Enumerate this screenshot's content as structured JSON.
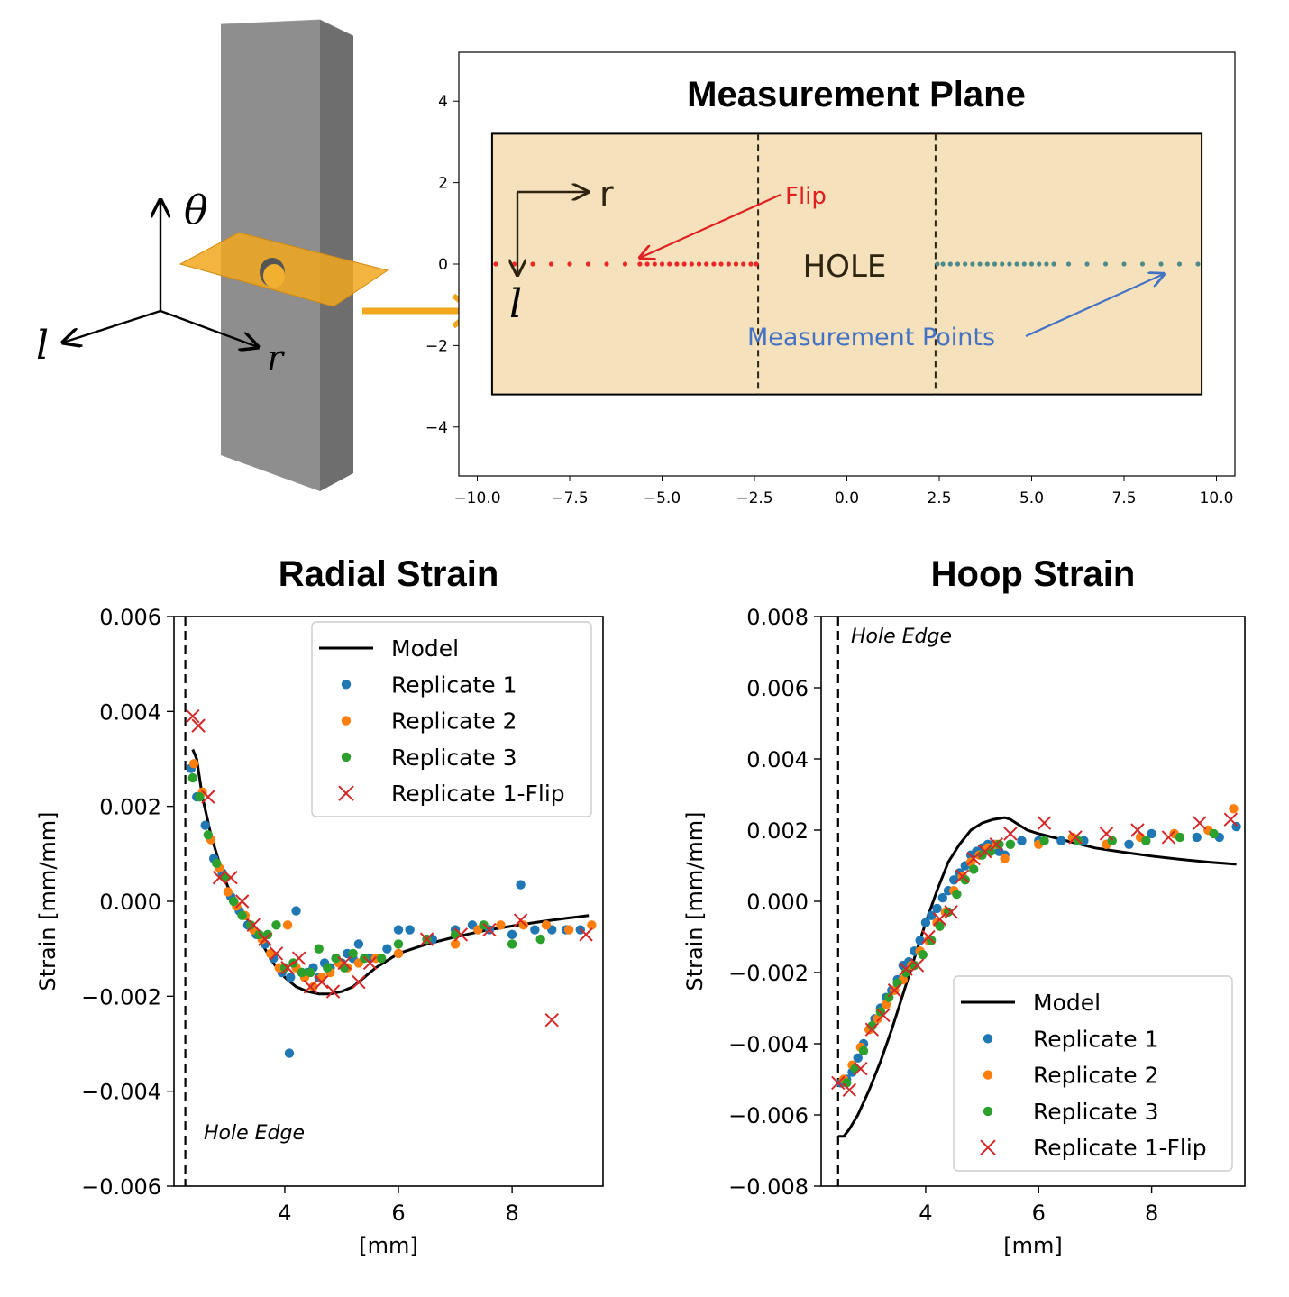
{
  "specimen": {
    "axes": {
      "theta": "θ",
      "l": "l",
      "r": "r"
    }
  },
  "chart_data": [
    {
      "type": "scatter",
      "title": "Measurement Plane",
      "xlim": [
        -10.5,
        10.5
      ],
      "ylim": [
        -5.2,
        5.2
      ],
      "xticks": [
        -10.0,
        -7.5,
        -5.0,
        -2.5,
        0.0,
        2.5,
        5.0,
        7.5,
        10.0
      ],
      "xtick_labels": [
        "−10.0",
        "−7.5",
        "−5.0",
        "−2.5",
        "0.0",
        "2.5",
        "5.0",
        "7.5",
        "10.0"
      ],
      "yticks": [
        -4,
        -2,
        0,
        2,
        4
      ],
      "ytick_labels": [
        "−4",
        "−2",
        "0",
        "2",
        "4"
      ],
      "plane": {
        "x": [
          -9.6,
          9.6
        ],
        "y": [
          -3.2,
          3.2
        ]
      },
      "hole_edges": [
        -2.4,
        2.4
      ],
      "annotations": {
        "hole": "HOLE",
        "flip": "Flip",
        "measurement_points": "Measurement Points",
        "r": "r",
        "l": "l"
      },
      "series": [
        {
          "color": "#ee2828",
          "x": [
            -9.5,
            -9.0,
            -8.5,
            -8.0,
            -7.5,
            -7.0,
            -6.5,
            -6.0,
            -5.6,
            -5.4,
            -5.2,
            -5.0,
            -4.8,
            -4.6,
            -4.4,
            -4.2,
            -4.0,
            -3.8,
            -3.6,
            -3.4,
            -3.2,
            -3.0,
            -2.8,
            -2.6,
            -2.45
          ],
          "y": [
            0,
            0,
            0,
            0,
            0,
            0,
            0,
            0,
            0,
            0,
            0,
            0,
            0,
            0,
            0,
            0,
            0,
            0,
            0,
            0,
            0,
            0,
            0,
            0,
            0
          ]
        },
        {
          "color": "#4f8a8b",
          "x": [
            2.45,
            2.6,
            2.8,
            3.0,
            3.2,
            3.4,
            3.6,
            3.8,
            4.0,
            4.2,
            4.4,
            4.6,
            4.8,
            5.0,
            5.2,
            5.4,
            5.6,
            6.0,
            6.5,
            7.0,
            7.5,
            8.0,
            8.5,
            9.0,
            9.5
          ],
          "y": [
            0,
            0,
            0,
            0,
            0,
            0,
            0,
            0,
            0,
            0,
            0,
            0,
            0,
            0,
            0,
            0,
            0,
            0,
            0,
            0,
            0,
            0,
            0,
            0,
            0
          ]
        }
      ]
    },
    {
      "type": "scatter",
      "title": "Radial Strain",
      "xlabel": "[mm]",
      "ylabel": "Strain [mm/mm]",
      "xlim": [
        2.05,
        9.6
      ],
      "ylim": [
        -0.006,
        0.006
      ],
      "xticks": [
        4,
        6,
        8
      ],
      "xtick_labels": [
        "4",
        "6",
        "8"
      ],
      "yticks": [
        -0.006,
        -0.004,
        -0.002,
        0.0,
        0.002,
        0.004,
        0.006
      ],
      "ytick_labels": [
        "−0.006",
        "−0.004",
        "−0.002",
        "0.000",
        "0.002",
        "0.004",
        "0.006"
      ],
      "hole_edge_x": 2.25,
      "hole_edge_label": "Hole Edge",
      "legend": [
        "Model",
        "Replicate 1",
        "Replicate 2",
        "Replicate 3",
        "Replicate 1-Flip"
      ],
      "legend_position": "top-right",
      "model": {
        "x": [
          2.38,
          2.45,
          2.55,
          2.7,
          2.85,
          3.0,
          3.2,
          3.4,
          3.6,
          3.8,
          4.0,
          4.2,
          4.4,
          4.6,
          4.8,
          5.0,
          5.2,
          5.4,
          5.6,
          5.8,
          6.0,
          6.5,
          7.0,
          7.5,
          8.0,
          8.5,
          9.0,
          9.35
        ],
        "y": [
          0.0032,
          0.003,
          0.0022,
          0.0014,
          0.0008,
          0.0003,
          -0.0001,
          -0.0005,
          -0.0009,
          -0.0013,
          -0.0016,
          -0.0018,
          -0.0019,
          -0.00195,
          -0.00195,
          -0.0019,
          -0.0018,
          -0.0016,
          -0.0014,
          -0.00125,
          -0.0011,
          -0.0009,
          -0.00075,
          -0.00062,
          -0.00052,
          -0.00043,
          -0.00035,
          -0.0003
        ]
      },
      "replicate_1": {
        "x": [
          2.35,
          2.45,
          2.6,
          2.75,
          2.9,
          3.05,
          3.2,
          3.35,
          3.5,
          3.65,
          3.8,
          3.95,
          4.1,
          4.2,
          4.3,
          4.4,
          4.5,
          4.6,
          4.7,
          4.8,
          4.9,
          5.0,
          5.1,
          5.2,
          5.3,
          5.5,
          5.8,
          6.0,
          6.2,
          6.6,
          7.0,
          7.3,
          7.6,
          8.0,
          8.15,
          8.4,
          8.7,
          8.95,
          9.2,
          4.08
        ],
        "y": [
          0.0028,
          0.0022,
          0.0016,
          0.0009,
          0.0006,
          0.0001,
          -0.0002,
          -0.0005,
          -0.0007,
          -0.0009,
          -0.0012,
          -0.0015,
          -0.0016,
          -0.0002,
          -0.0015,
          -0.0015,
          -0.0014,
          -0.0016,
          -0.0013,
          -0.0014,
          -0.0012,
          -0.0013,
          -0.0011,
          -0.0012,
          -0.0009,
          -0.0012,
          -0.001,
          -0.0006,
          -0.0006,
          -0.0008,
          -0.0006,
          -0.0005,
          -0.0006,
          -0.0007,
          0.00035,
          -0.0006,
          -0.0006,
          -0.0006,
          -0.0006,
          -0.0032
        ]
      },
      "replicate_2": {
        "x": [
          2.4,
          2.55,
          2.7,
          2.85,
          3.0,
          3.15,
          3.3,
          3.45,
          3.6,
          3.75,
          3.9,
          4.05,
          4.2,
          4.35,
          4.5,
          4.65,
          4.8,
          4.95,
          5.1,
          5.3,
          5.6,
          6.0,
          6.5,
          7.0,
          7.4,
          7.8,
          8.2,
          8.6,
          9.0,
          9.4
        ],
        "y": [
          0.0029,
          0.0023,
          0.0013,
          0.0007,
          0.0002,
          -0.0001,
          -0.0003,
          -0.0006,
          -0.0008,
          -0.0011,
          -0.0014,
          -0.0005,
          -0.0014,
          -0.0016,
          -0.0018,
          -0.0016,
          -0.0015,
          -0.0013,
          -0.0014,
          -0.0013,
          -0.0012,
          -0.0011,
          -0.0008,
          -0.0009,
          -0.0006,
          -0.0005,
          -0.0005,
          -0.0005,
          -0.0006,
          -0.0005
        ]
      },
      "replicate_3": {
        "x": [
          2.38,
          2.5,
          2.65,
          2.8,
          2.95,
          3.1,
          3.25,
          3.4,
          3.55,
          3.7,
          3.85,
          4.0,
          4.15,
          4.3,
          4.45,
          4.6,
          4.75,
          4.9,
          5.05,
          5.2,
          5.4,
          5.7,
          6.0,
          6.5,
          7.0,
          7.5,
          8.0,
          8.5
        ],
        "y": [
          0.0026,
          0.0022,
          0.0014,
          0.0008,
          0.0005,
          0.0,
          -0.0003,
          -0.0005,
          -0.0007,
          -0.0007,
          -0.0005,
          -0.0014,
          -0.0013,
          -0.0015,
          -0.0015,
          -0.001,
          -0.0014,
          -0.0012,
          -0.0014,
          -0.0011,
          -0.0012,
          -0.0012,
          -0.0009,
          -0.0008,
          -0.0007,
          -0.0005,
          -0.0009,
          -0.0008
        ]
      },
      "replicate_1_flip": {
        "x": [
          2.38,
          2.48,
          2.65,
          2.85,
          3.05,
          3.25,
          3.45,
          3.65,
          3.85,
          4.05,
          4.25,
          4.45,
          4.65,
          4.85,
          5.05,
          5.3,
          5.5,
          6.5,
          7.1,
          7.6,
          8.15,
          8.7,
          9.3
        ],
        "y": [
          0.0039,
          0.0037,
          0.0022,
          0.0005,
          0.0005,
          0.0,
          -0.0005,
          -0.0008,
          -0.0011,
          -0.0014,
          -0.0012,
          -0.0018,
          -0.0017,
          -0.0019,
          -0.0013,
          -0.0017,
          -0.0013,
          -0.0008,
          -0.0007,
          -0.0006,
          -0.0004,
          -0.0025,
          -0.0007
        ]
      }
    },
    {
      "type": "scatter",
      "title": "Hoop Strain",
      "xlabel": "[mm]",
      "ylabel": "Strain [mm/mm]",
      "xlim": [
        2.15,
        9.65
      ],
      "ylim": [
        -0.008,
        0.008
      ],
      "xticks": [
        4,
        6,
        8
      ],
      "xtick_labels": [
        "4",
        "6",
        "8"
      ],
      "yticks": [
        -0.008,
        -0.006,
        -0.004,
        -0.002,
        0.0,
        0.002,
        0.004,
        0.006,
        0.008
      ],
      "ytick_labels": [
        "−0.008",
        "−0.006",
        "−0.004",
        "−0.002",
        "0.000",
        "0.002",
        "0.004",
        "0.006",
        "0.008"
      ],
      "hole_edge_x": 2.45,
      "hole_edge_label": "Hole Edge",
      "legend": [
        "Model",
        "Replicate 1",
        "Replicate 2",
        "Replicate 3",
        "Replicate 1-Flip"
      ],
      "legend_position": "bottom-right",
      "model": {
        "x": [
          2.45,
          2.55,
          2.65,
          2.8,
          3.0,
          3.2,
          3.4,
          3.6,
          3.8,
          4.0,
          4.2,
          4.4,
          4.6,
          4.8,
          5.0,
          5.2,
          5.4,
          5.5,
          5.6,
          5.8,
          6.0,
          6.5,
          7.0,
          7.5,
          8.0,
          8.5,
          9.0,
          9.5
        ],
        "y": [
          -0.0066,
          -0.0066,
          -0.0064,
          -0.006,
          -0.0053,
          -0.0045,
          -0.0036,
          -0.0026,
          -0.0016,
          -0.0006,
          0.0003,
          0.0011,
          0.0016,
          0.002,
          0.0022,
          0.0023,
          0.00235,
          0.0023,
          0.0022,
          0.002,
          0.0019,
          0.0017,
          0.0015,
          0.00138,
          0.00127,
          0.00118,
          0.0011,
          0.00104
        ]
      },
      "replicate_1": {
        "x": [
          2.5,
          2.6,
          2.7,
          2.8,
          2.9,
          3.0,
          3.1,
          3.2,
          3.3,
          3.4,
          3.5,
          3.6,
          3.7,
          3.8,
          3.9,
          4.0,
          4.1,
          4.2,
          4.3,
          4.4,
          4.5,
          4.6,
          4.7,
          4.8,
          4.9,
          5.0,
          5.1,
          5.2,
          5.3,
          5.4,
          5.5,
          5.7,
          6.0,
          6.4,
          6.8,
          7.2,
          7.6,
          8.0,
          8.4,
          8.8,
          9.2,
          9.5
        ],
        "y": [
          -0.0051,
          -0.005,
          -0.0048,
          -0.0044,
          -0.004,
          -0.0036,
          -0.0033,
          -0.003,
          -0.0027,
          -0.0025,
          -0.0022,
          -0.0018,
          -0.0017,
          -0.0014,
          -0.0011,
          -0.0006,
          -0.0004,
          -0.0002,
          0.0001,
          0.0003,
          0.0006,
          0.0008,
          0.001,
          0.0013,
          0.0014,
          0.0015,
          0.0016,
          0.0016,
          0.0014,
          0.0013,
          0.0016,
          0.0017,
          0.0017,
          0.0017,
          0.0017,
          0.0016,
          0.0016,
          0.0019,
          0.0019,
          0.0018,
          0.0018,
          0.0021
        ]
      },
      "replicate_2": {
        "x": [
          2.55,
          2.7,
          2.85,
          3.0,
          3.15,
          3.3,
          3.45,
          3.6,
          3.75,
          3.9,
          4.05,
          4.2,
          4.35,
          4.5,
          4.65,
          4.8,
          4.95,
          5.1,
          5.25,
          5.4,
          6.0,
          6.6,
          7.2,
          7.8,
          8.4,
          9.0,
          9.45
        ],
        "y": [
          -0.005,
          -0.0046,
          -0.0041,
          -0.0036,
          -0.0033,
          -0.0029,
          -0.0025,
          -0.0022,
          -0.0018,
          -0.0014,
          -0.0011,
          -0.0006,
          -0.0003,
          0.0003,
          0.0007,
          0.0011,
          0.0013,
          0.0015,
          0.0016,
          0.0012,
          0.0016,
          0.0018,
          0.0016,
          0.0018,
          0.0019,
          0.002,
          0.0026
        ]
      },
      "replicate_3": {
        "x": [
          2.6,
          2.75,
          2.9,
          3.05,
          3.2,
          3.35,
          3.5,
          3.65,
          3.8,
          3.95,
          4.1,
          4.25,
          4.4,
          4.55,
          4.7,
          4.85,
          5.0,
          5.15,
          5.3,
          5.5,
          6.1,
          6.7,
          7.3,
          7.9,
          8.5,
          9.1
        ],
        "y": [
          -0.0051,
          -0.0047,
          -0.0042,
          -0.0035,
          -0.0031,
          -0.0027,
          -0.0023,
          -0.002,
          -0.0018,
          -0.0015,
          -0.0011,
          -0.0007,
          -0.0003,
          0.0002,
          0.0006,
          0.0009,
          0.0013,
          0.0014,
          0.0016,
          0.0016,
          0.0017,
          0.0017,
          0.0017,
          0.0017,
          0.0018,
          0.0019
        ]
      },
      "replicate_1_flip": {
        "x": [
          2.45,
          2.65,
          2.85,
          3.05,
          3.25,
          3.45,
          3.65,
          3.85,
          4.05,
          4.25,
          4.45,
          4.65,
          4.85,
          5.05,
          5.25,
          5.5,
          6.1,
          6.65,
          7.2,
          7.75,
          8.3,
          8.85,
          9.4
        ],
        "y": [
          -0.0051,
          -0.0053,
          -0.0047,
          -0.0036,
          -0.0032,
          -0.0025,
          -0.0019,
          -0.0018,
          -0.001,
          -0.0005,
          -0.0003,
          0.0007,
          0.0012,
          0.0014,
          0.0016,
          0.0019,
          0.0022,
          0.0018,
          0.0019,
          0.002,
          0.0018,
          0.0022,
          0.0023
        ]
      }
    }
  ]
}
